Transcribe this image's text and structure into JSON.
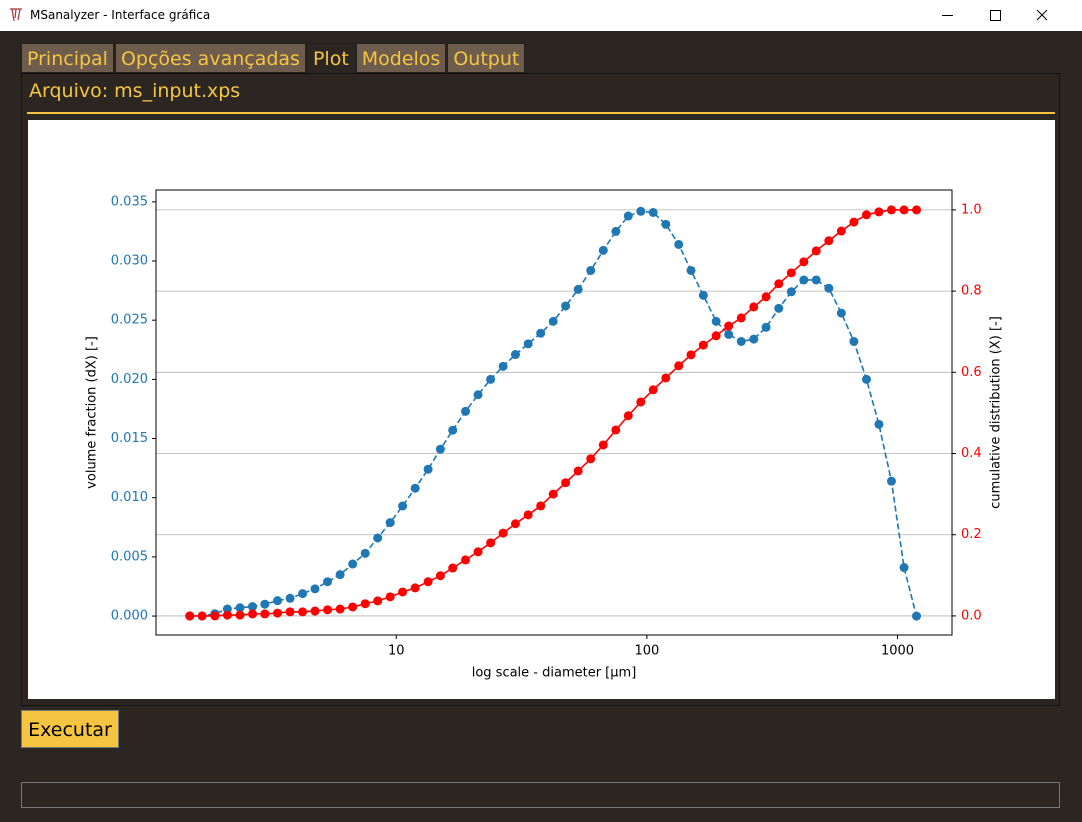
{
  "window": {
    "title": "MSanalyzer - Interface gráfica"
  },
  "tabs": [
    "Principal",
    "Opções avançadas",
    "Plot",
    "Modelos",
    "Output"
  ],
  "active_tab": 2,
  "file_label": "Arquivo: ms_input.xps",
  "button": "Executar",
  "chart_data": {
    "type": "line",
    "xscale": "log",
    "xlabel": "log scale - diameter [μm]",
    "ylabel": "volume fraction (dX) [-]",
    "y2label": "cumulative distribution (X) [-]",
    "x": [
      1.5,
      1.68,
      1.89,
      2.12,
      2.38,
      2.67,
      2.99,
      3.36,
      3.77,
      4.23,
      4.74,
      5.32,
      5.97,
      6.7,
      7.52,
      8.43,
      9.46,
      10.6,
      11.9,
      13.4,
      15.0,
      16.8,
      18.9,
      21.2,
      23.8,
      26.7,
      29.9,
      33.6,
      37.7,
      42.3,
      47.4,
      53.2,
      59.7,
      67.0,
      75.2,
      84.3,
      94.6,
      106,
      119,
      134,
      150,
      168,
      189,
      212,
      238,
      267,
      299,
      336,
      377,
      423,
      474,
      532,
      597,
      670,
      752,
      843,
      946,
      1062,
      1191
    ],
    "series": [
      {
        "color": "#1f77b4",
        "linestyle": "dashed",
        "axis": "y",
        "values": [
          0,
          0,
          0.0002,
          0.0006,
          0.0007,
          0.0008,
          0.001,
          0.0013,
          0.0015,
          0.0019,
          0.0023,
          0.0029,
          0.0035,
          0.0044,
          0.0053,
          0.0066,
          0.0079,
          0.0093,
          0.0108,
          0.0124,
          0.0141,
          0.0157,
          0.0173,
          0.0187,
          0.02,
          0.0211,
          0.0221,
          0.023,
          0.0239,
          0.0249,
          0.0262,
          0.0276,
          0.0292,
          0.0309,
          0.0325,
          0.0338,
          0.0342,
          0.0341,
          0.0331,
          0.0314,
          0.0292,
          0.0271,
          0.0249,
          0.0238,
          0.0232,
          0.0234,
          0.0244,
          0.026,
          0.0274,
          0.0284,
          0.0284,
          0.0277,
          0.0256,
          0.0232,
          0.02,
          0.0162,
          0.0114,
          0.0041,
          0
        ]
      },
      {
        "color": "#ff0000",
        "linestyle": "solid",
        "axis": "y2",
        "values": [
          0,
          0,
          0,
          0.002,
          0.002,
          0.005,
          0.005,
          0.007,
          0.01,
          0.01,
          0.012,
          0.015,
          0.017,
          0.022,
          0.03,
          0.037,
          0.047,
          0.059,
          0.069,
          0.084,
          0.099,
          0.118,
          0.138,
          0.158,
          0.18,
          0.204,
          0.227,
          0.249,
          0.271,
          0.3,
          0.328,
          0.357,
          0.387,
          0.421,
          0.458,
          0.493,
          0.527,
          0.557,
          0.586,
          0.616,
          0.643,
          0.667,
          0.69,
          0.714,
          0.734,
          0.761,
          0.786,
          0.818,
          0.845,
          0.872,
          0.899,
          0.924,
          0.948,
          0.97,
          0.988,
          0.995,
          1.0,
          1.0,
          1.0
        ]
      }
    ],
    "xlim": [
      1.1,
      1650
    ],
    "xticks": [
      10,
      100,
      1000
    ],
    "ylim": [
      -0.0016,
      0.036
    ],
    "yticks": [
      {
        "value": 0,
        "label": "0.000"
      },
      {
        "value": 0.005,
        "label": "0.005"
      },
      {
        "value": 0.01,
        "label": "0.010"
      },
      {
        "value": 0.015,
        "label": "0.015"
      },
      {
        "value": 0.02,
        "label": "0.020"
      },
      {
        "value": 0.025,
        "label": "0.025"
      },
      {
        "value": 0.03,
        "label": "0.030"
      },
      {
        "value": 0.035,
        "label": "0.035"
      }
    ],
    "y2lim": [
      -0.047,
      1.049
    ],
    "y2ticks": [
      {
        "value": 0,
        "label": "0.0"
      },
      {
        "value": 0.2,
        "label": "0.2"
      },
      {
        "value": 0.4,
        "label": "0.4"
      },
      {
        "value": 0.6,
        "label": "0.6"
      },
      {
        "value": 0.8,
        "label": "0.8"
      },
      {
        "value": 1,
        "label": "1.0"
      }
    ],
    "grid": "y2"
  }
}
